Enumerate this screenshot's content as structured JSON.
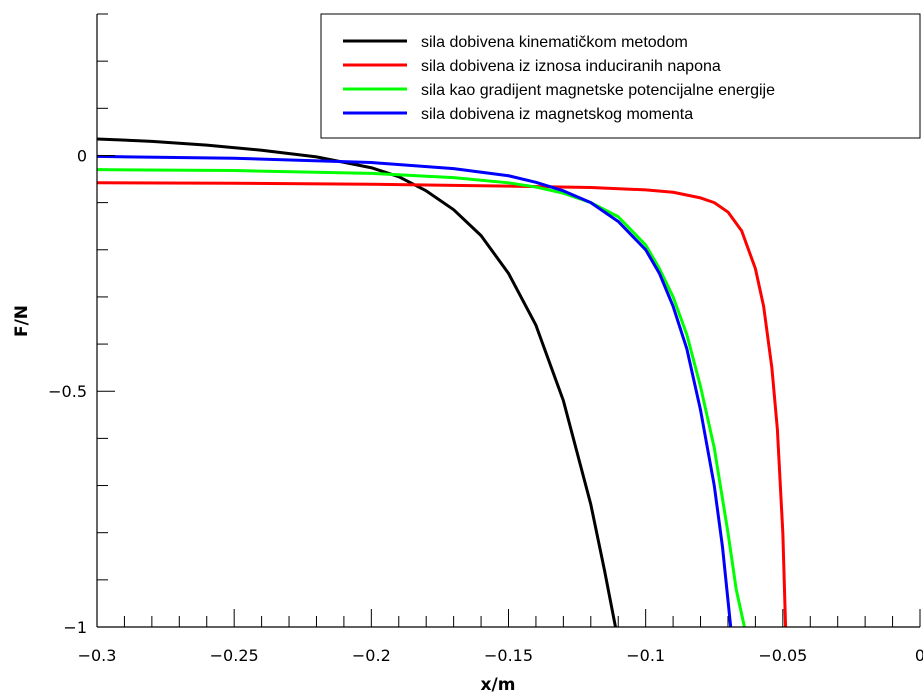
{
  "chart_data": {
    "type": "line",
    "title": "",
    "xlabel": "x/m",
    "ylabel": "F/N",
    "xlim": [
      -0.3,
      0
    ],
    "ylim": [
      -1,
      0.3
    ],
    "grid": false,
    "legend_position": "top-right",
    "x_ticks": [
      {
        "value": -0.3,
        "label": "−0.3"
      },
      {
        "value": -0.25,
        "label": "−0.25"
      },
      {
        "value": -0.2,
        "label": "−0.2"
      },
      {
        "value": -0.15,
        "label": "−0.15"
      },
      {
        "value": -0.1,
        "label": "−0.1"
      },
      {
        "value": -0.05,
        "label": "−0.05"
      },
      {
        "value": 0,
        "label": "0"
      }
    ],
    "x_minor_step": 0.01,
    "y_ticks": [
      {
        "value": 0,
        "label": "0"
      },
      {
        "value": -0.5,
        "label": "−0.5"
      },
      {
        "value": -1,
        "label": "−1"
      }
    ],
    "y_minor_step": 0.1,
    "series": [
      {
        "name": "sila dobivena kinematičkom metodom",
        "color": "#000000",
        "x": [
          -0.3,
          -0.28,
          -0.26,
          -0.24,
          -0.22,
          -0.2,
          -0.19,
          -0.18,
          -0.17,
          -0.16,
          -0.15,
          -0.14,
          -0.13,
          -0.12,
          -0.115,
          -0.111
        ],
        "y": [
          0.035,
          0.03,
          0.022,
          0.011,
          -0.003,
          -0.026,
          -0.045,
          -0.075,
          -0.115,
          -0.17,
          -0.25,
          -0.36,
          -0.52,
          -0.74,
          -0.88,
          -1.0
        ]
      },
      {
        "name": "sila dobivena iz iznosa induciranih napona",
        "color": "#ff0000",
        "x": [
          -0.3,
          -0.25,
          -0.2,
          -0.15,
          -0.12,
          -0.1,
          -0.09,
          -0.08,
          -0.075,
          -0.07,
          -0.065,
          -0.06,
          -0.057,
          -0.054,
          -0.052,
          -0.05,
          -0.049
        ],
        "y": [
          -0.058,
          -0.059,
          -0.061,
          -0.065,
          -0.068,
          -0.073,
          -0.078,
          -0.09,
          -0.1,
          -0.12,
          -0.16,
          -0.24,
          -0.32,
          -0.45,
          -0.58,
          -0.8,
          -1.0
        ]
      },
      {
        "name": "sila kao gradijent magnetske potencijalne energije",
        "color": "#00ff00",
        "x": [
          -0.3,
          -0.25,
          -0.2,
          -0.17,
          -0.15,
          -0.14,
          -0.13,
          -0.12,
          -0.11,
          -0.1,
          -0.095,
          -0.09,
          -0.085,
          -0.08,
          -0.075,
          -0.07,
          -0.067,
          -0.064
        ],
        "y": [
          -0.03,
          -0.032,
          -0.038,
          -0.047,
          -0.058,
          -0.067,
          -0.08,
          -0.1,
          -0.13,
          -0.19,
          -0.24,
          -0.3,
          -0.38,
          -0.49,
          -0.62,
          -0.8,
          -0.92,
          -1.0
        ]
      },
      {
        "name": "sila dobivena iz magnetskog momenta",
        "color": "#0000ff",
        "x": [
          -0.3,
          -0.25,
          -0.2,
          -0.17,
          -0.15,
          -0.14,
          -0.13,
          -0.12,
          -0.11,
          -0.1,
          -0.095,
          -0.09,
          -0.085,
          -0.08,
          -0.075,
          -0.072,
          -0.069
        ],
        "y": [
          -0.002,
          -0.006,
          -0.015,
          -0.028,
          -0.043,
          -0.057,
          -0.075,
          -0.1,
          -0.14,
          -0.2,
          -0.25,
          -0.32,
          -0.41,
          -0.54,
          -0.7,
          -0.83,
          -1.0
        ]
      }
    ]
  }
}
